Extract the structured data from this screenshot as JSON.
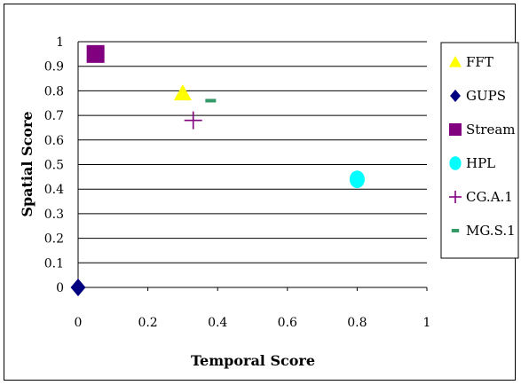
{
  "chart_data": {
    "type": "scatter",
    "title": "",
    "xlabel": "Temporal Score",
    "ylabel": "Spatial Score",
    "xlim": [
      0,
      1
    ],
    "ylim": [
      0,
      1
    ],
    "x_ticks": [
      "0",
      "0.2",
      "0.4",
      "0.6",
      "0.8",
      "1"
    ],
    "y_ticks": [
      "0",
      "0.1",
      "0.2",
      "0.3",
      "0.4",
      "0.5",
      "0.6",
      "0.7",
      "0.8",
      "0.9",
      "1"
    ],
    "grid": "horizontal",
    "legend_position": "right",
    "series": [
      {
        "name": "FFT",
        "marker": "triangle",
        "color": "#ffff00",
        "x": 0.3,
        "y": 0.79
      },
      {
        "name": "GUPS",
        "marker": "diamond",
        "color": "#000080",
        "x": 0.0,
        "y": 0.0
      },
      {
        "name": "Stream",
        "marker": "square",
        "color": "#800080",
        "x": 0.05,
        "y": 0.95
      },
      {
        "name": "HPL",
        "marker": "circle",
        "color": "#00ffff",
        "x": 0.8,
        "y": 0.44
      },
      {
        "name": "CG.A.1",
        "marker": "plus",
        "color": "#800080",
        "x": 0.33,
        "y": 0.68
      },
      {
        "name": "MG.S.1",
        "marker": "dash",
        "color": "#339966",
        "x": 0.38,
        "y": 0.76
      }
    ]
  }
}
